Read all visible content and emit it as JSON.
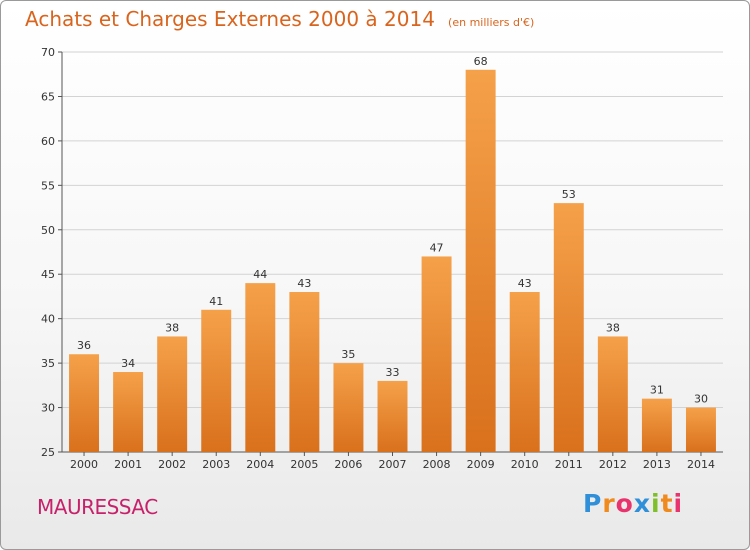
{
  "header": {
    "title": "Achats et Charges Externes 2000 à 2014",
    "subtitle": "(en milliers d'€)"
  },
  "footer": {
    "place": "MAURESSAC",
    "brand": "Proxiti"
  },
  "colors": {
    "bar_top": "#f5a14a",
    "bar_bottom": "#d9701c",
    "title": "#d9641d",
    "place": "#c8216b",
    "grid": "#d3d3d3"
  },
  "chart_data": {
    "type": "bar",
    "title": "Achats et Charges Externes 2000 à 2014",
    "subtitle": "(en milliers d'€)",
    "categories": [
      "2000",
      "2001",
      "2002",
      "2003",
      "2004",
      "2005",
      "2006",
      "2007",
      "2008",
      "2009",
      "2010",
      "2011",
      "2012",
      "2013",
      "2014"
    ],
    "values": [
      36,
      34,
      38,
      41,
      44,
      43,
      35,
      33,
      47,
      68,
      43,
      53,
      38,
      31,
      30
    ],
    "ylim": [
      25,
      70
    ],
    "yticks": [
      25,
      30,
      35,
      40,
      45,
      50,
      55,
      60,
      65,
      70
    ],
    "xlabel": "",
    "ylabel": "",
    "grid": true,
    "data_labels": true
  }
}
